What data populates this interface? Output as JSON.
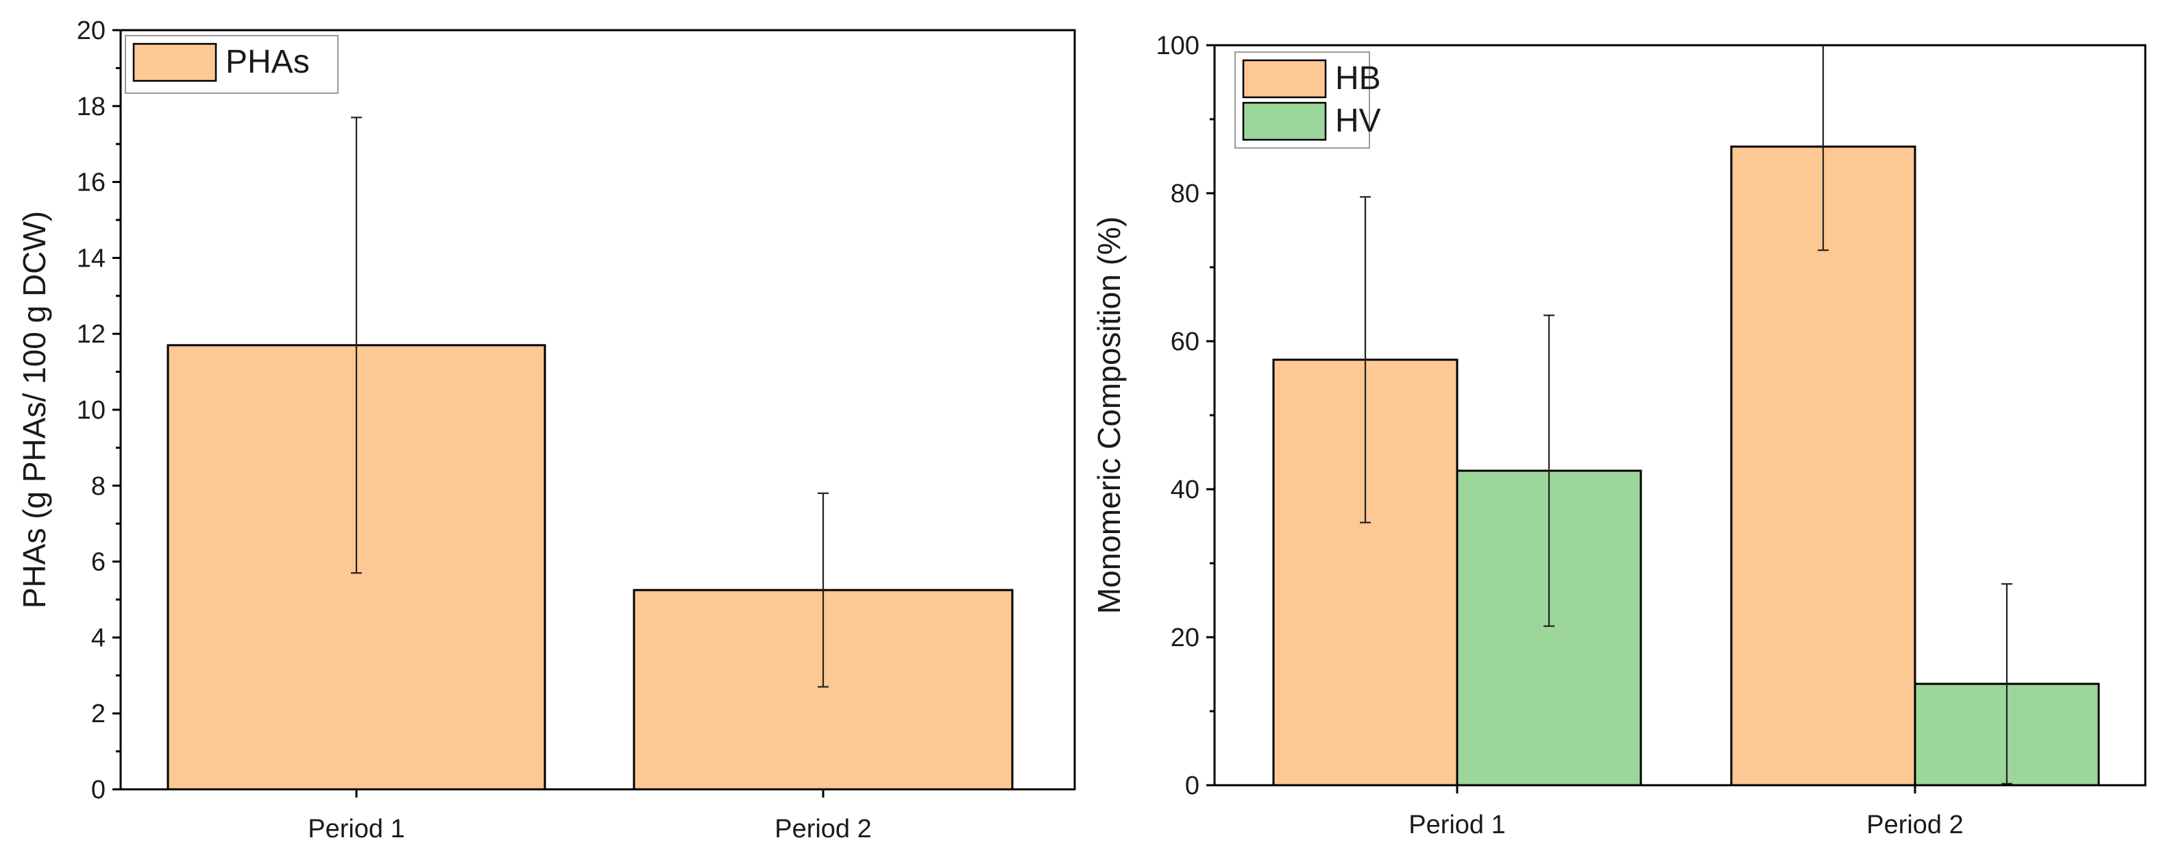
{
  "chart_data": [
    {
      "type": "bar",
      "categories": [
        "Period 1",
        "Period 2"
      ],
      "series": [
        {
          "name": "PHAs",
          "color": "#fdc894",
          "values": [
            11.7,
            5.25
          ],
          "errors": [
            6.0,
            2.55
          ]
        }
      ],
      "title": "",
      "xlabel": "",
      "ylabel": "PHAs (g PHAs/ 100 g DCW)",
      "ylim": [
        0,
        20
      ],
      "yticks": [
        "0",
        "2",
        "4",
        "6",
        "8",
        "10",
        "12",
        "14",
        "16",
        "18",
        "20"
      ],
      "legend": "top-left"
    },
    {
      "type": "bar",
      "categories": [
        "Period 1",
        "Period 2"
      ],
      "series": [
        {
          "name": "HB",
          "color": "#fdc894",
          "values": [
            57.5,
            86.3
          ],
          "errors": [
            22.0,
            14.0
          ]
        },
        {
          "name": "HV",
          "color": "#9dd69b",
          "values": [
            42.5,
            13.7
          ],
          "errors": [
            21.0,
            13.5
          ]
        }
      ],
      "title": "",
      "xlabel": "",
      "ylabel": "Monomeric Composition (%)",
      "ylim": [
        0,
        100
      ],
      "yticks": [
        "0",
        "20",
        "40",
        "60",
        "80",
        "100"
      ],
      "legend": "top-left"
    }
  ]
}
